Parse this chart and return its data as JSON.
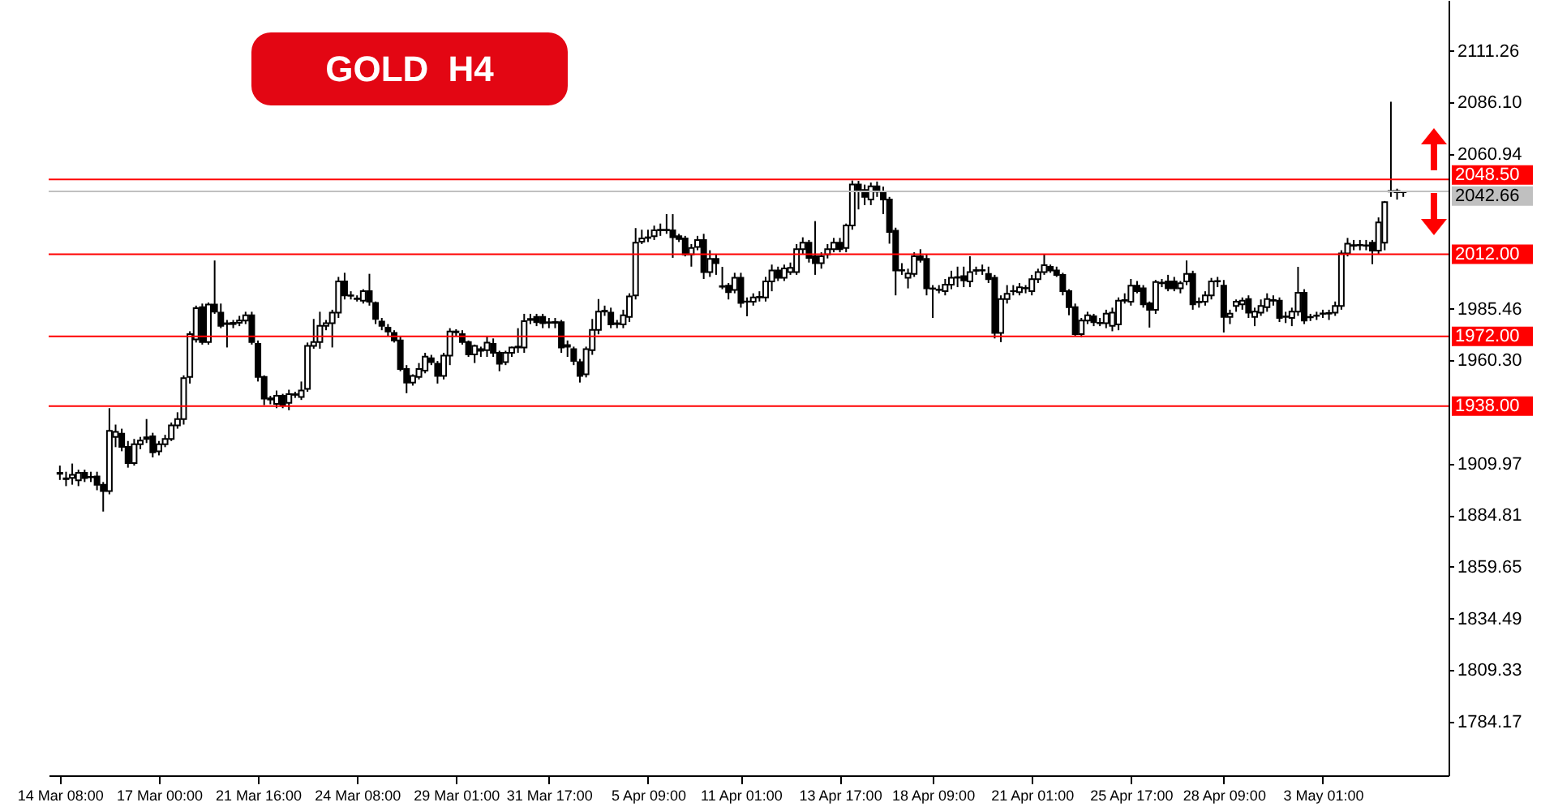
{
  "chart_data": {
    "type": "candlestick",
    "title": "GOLD H4",
    "categories": [
      "14 Mar 08:00",
      null,
      null,
      null,
      null,
      null,
      null,
      null,
      null,
      null,
      null,
      null,
      null,
      null,
      null,
      null,
      "17 Mar 00:00",
      null,
      null,
      null,
      null,
      null,
      null,
      null,
      null,
      null,
      null,
      null,
      null,
      null,
      null,
      null,
      "21 Mar 16:00",
      null,
      null,
      null,
      null,
      null,
      null,
      null,
      null,
      null,
      null,
      null,
      null,
      null,
      null,
      null,
      "24 Mar 08:00",
      null,
      null,
      null,
      null,
      null,
      null,
      null,
      null,
      null,
      null,
      null,
      null,
      null,
      null,
      null,
      "29 Mar 01:00",
      null,
      null,
      null,
      null,
      null,
      null,
      null,
      null,
      null,
      null,
      null,
      null,
      null,
      null,
      "31 Mar 17:00",
      null,
      null,
      null,
      null,
      null,
      null,
      null,
      null,
      null,
      null,
      null,
      null,
      null,
      null,
      null,
      "5 Apr 09:00",
      null,
      null,
      null,
      null,
      null,
      null,
      null,
      null,
      null,
      null,
      null,
      null,
      null,
      null,
      "11 Apr 01:00",
      null,
      null,
      null,
      null,
      null,
      null,
      null,
      null,
      null,
      null,
      null,
      null,
      null,
      null,
      null,
      "13 Apr 17:00",
      null,
      null,
      null,
      null,
      null,
      null,
      null,
      null,
      null,
      null,
      null,
      null,
      null,
      null,
      "18 Apr 09:00",
      null,
      null,
      null,
      null,
      null,
      null,
      null,
      null,
      null,
      null,
      null,
      null,
      null,
      null,
      null,
      "21 Apr 01:00",
      null,
      null,
      null,
      null,
      null,
      null,
      null,
      null,
      null,
      null,
      null,
      null,
      null,
      null,
      null,
      "25 Apr 17:00",
      null,
      null,
      null,
      null,
      null,
      null,
      null,
      null,
      null,
      null,
      null,
      null,
      null,
      null,
      "28 Apr 09:00",
      null,
      null,
      null,
      null,
      null,
      null,
      null,
      null,
      null,
      null,
      null,
      null,
      null,
      null,
      null,
      "3 May 01:00",
      null,
      null,
      null,
      null,
      null,
      null,
      null,
      null,
      null,
      null,
      null,
      null,
      null
    ],
    "ohlc": [
      [
        1905.5,
        1909,
        1902,
        1905.0
      ],
      [
        1902.8,
        1906,
        1899,
        1902.4
      ],
      [
        1903.0,
        1910,
        1899.7,
        1904.5
      ],
      [
        1901.8,
        1907,
        1899,
        1905.5
      ],
      [
        1905.5,
        1907,
        1901,
        1902.9
      ],
      [
        1903.5,
        1906,
        1901,
        1903.3
      ],
      [
        1903.7,
        1906,
        1897,
        1899.7
      ],
      [
        1899.7,
        1901,
        1886.6,
        1896.6
      ],
      [
        1896.6,
        1937.0,
        1895,
        1925.9
      ],
      [
        1923,
        1929,
        1918,
        1925.5
      ],
      [
        1924.6,
        1927,
        1916,
        1918.1
      ],
      [
        1918.1,
        1921,
        1908,
        1910.2
      ],
      [
        1910.2,
        1922,
        1909,
        1919.4
      ],
      [
        1919.4,
        1923,
        1917,
        1921.2
      ],
      [
        1922.0,
        1931.7,
        1920,
        1922.8
      ],
      [
        1923.3,
        1925,
        1913,
        1915.5
      ],
      [
        1916.0,
        1921,
        1914,
        1919.4
      ],
      [
        1919.4,
        1924,
        1918,
        1922.0
      ],
      [
        1922.0,
        1930,
        1921,
        1928.6
      ],
      [
        1928.6,
        1935,
        1927,
        1931.7
      ],
      [
        1931.7,
        1953,
        1929,
        1951.6
      ],
      [
        1952.2,
        1974.5,
        1949,
        1973.1
      ],
      [
        1970.5,
        1987,
        1969,
        1985.7
      ],
      [
        1986.2,
        1988,
        1968,
        1969.2
      ],
      [
        1969.2,
        1988.5,
        1968,
        1987.5
      ],
      [
        1987.5,
        2009.0,
        1983,
        1984.1
      ],
      [
        1983.6,
        1988,
        1976,
        1977.1
      ],
      [
        1978.4,
        1980,
        1966.6,
        1978.0
      ],
      [
        1978.0,
        1980,
        1976,
        1978.6
      ],
      [
        1978.6,
        1982,
        1977,
        1979.7
      ],
      [
        1979.7,
        1984,
        1978,
        1982.3
      ],
      [
        1982.3,
        1984,
        1968,
        1969.2
      ],
      [
        1968.4,
        1970,
        1950,
        1952.2
      ],
      [
        1952.2,
        1953,
        1938.5,
        1941.7
      ],
      [
        1941.8,
        1943,
        1938.9,
        1941.2
      ],
      [
        1939.1,
        1945.6,
        1937,
        1943.0
      ],
      [
        1943.0,
        1944,
        1937,
        1938.5
      ],
      [
        1939.6,
        1946,
        1936,
        1943.8
      ],
      [
        1943.5,
        1945,
        1942,
        1943.8
      ],
      [
        1942.5,
        1950,
        1941,
        1945.6
      ],
      [
        1946.4,
        1969,
        1945,
        1967.4
      ],
      [
        1967.4,
        1980.5,
        1966,
        1969.2
      ],
      [
        1969.2,
        1984,
        1966,
        1977.1
      ],
      [
        1977.1,
        1980,
        1975,
        1978.4
      ],
      [
        1978.4,
        1985,
        1966.6,
        1983.6
      ],
      [
        1983.6,
        2001,
        1981,
        1998.8
      ],
      [
        1998.8,
        2003,
        1990,
        1992.0
      ],
      [
        1992.0,
        1994,
        1990,
        1991.8
      ],
      [
        1990.5,
        1992,
        1989,
        1990.2
      ],
      [
        1989.4,
        1995,
        1988,
        1994.1
      ],
      [
        1994.1,
        2002.5,
        1987,
        1988.9
      ],
      [
        1988.3,
        1989,
        1978,
        1980.5
      ],
      [
        1979.2,
        1981,
        1975,
        1977.1
      ],
      [
        1976.3,
        1978,
        1972,
        1974.4
      ],
      [
        1973.7,
        1975,
        1969,
        1970.0
      ],
      [
        1970.0,
        1972,
        1955,
        1956.1
      ],
      [
        1956.1,
        1958,
        1944.3,
        1949.5
      ],
      [
        1949.5,
        1953.5,
        1948,
        1952.7
      ],
      [
        1952.2,
        1959,
        1951,
        1956.1
      ],
      [
        1955.3,
        1964,
        1954,
        1962.1
      ],
      [
        1961.3,
        1963,
        1958,
        1959.5
      ],
      [
        1958.7,
        1960,
        1949,
        1952.7
      ],
      [
        1952.7,
        1964,
        1951,
        1962.6
      ],
      [
        1962.6,
        1976,
        1958,
        1974.4
      ],
      [
        1974.4,
        1975.5,
        1972,
        1974.0
      ],
      [
        1973.1,
        1975,
        1968,
        1969.2
      ],
      [
        1969.2,
        1970,
        1962,
        1963.2
      ],
      [
        1963.2,
        1968,
        1959,
        1967.4
      ],
      [
        1965.0,
        1967,
        1962,
        1965.8
      ],
      [
        1965.3,
        1972,
        1962,
        1968.9
      ],
      [
        1968.4,
        1971,
        1962,
        1964.0
      ],
      [
        1964.0,
        1965,
        1955,
        1958.7
      ],
      [
        1959.5,
        1965,
        1958,
        1964.0
      ],
      [
        1964.0,
        1967,
        1962,
        1966.6
      ],
      [
        1966.6,
        1976,
        1964,
        1967.0
      ],
      [
        1966.6,
        1983,
        1964,
        1979.4
      ],
      [
        1980.0,
        1983,
        1978,
        1980.5
      ],
      [
        1981.5,
        1983,
        1977,
        1978.9
      ],
      [
        1981.5,
        1983,
        1976,
        1978.4
      ],
      [
        1978.9,
        1981,
        1976,
        1978.6
      ],
      [
        1978.6,
        1981,
        1976,
        1979.0
      ],
      [
        1978.9,
        1980,
        1964,
        1966.6
      ],
      [
        1967.0,
        1970,
        1962,
        1967.8
      ],
      [
        1965.8,
        1967,
        1958,
        1960.0
      ],
      [
        1959.5,
        1961,
        1949.5,
        1952.7
      ],
      [
        1953.5,
        1967,
        1952,
        1965.8
      ],
      [
        1965.3,
        1980.5,
        1963,
        1975.2
      ],
      [
        1975.2,
        1990.2,
        1973,
        1984.1
      ],
      [
        1984.1,
        1987,
        1982,
        1984.5
      ],
      [
        1983.6,
        1986,
        1976,
        1977.8
      ],
      [
        1978.0,
        1980,
        1976,
        1978.4
      ],
      [
        1977.8,
        1985,
        1976,
        1982.3
      ],
      [
        1981.5,
        1993,
        1979,
        1991.5
      ],
      [
        1992.0,
        2024.8,
        1990,
        2017.7
      ],
      [
        2018.2,
        2024,
        2017,
        2019.8
      ],
      [
        2020.0,
        2024,
        2018,
        2020.3
      ],
      [
        2020.8,
        2026,
        2019,
        2023.7
      ],
      [
        2023.7,
        2027,
        2021,
        2024.0
      ],
      [
        2023.7,
        2031.6,
        2022,
        2024.0
      ],
      [
        2023.7,
        2031.6,
        2010.3,
        2020.3
      ],
      [
        2020.8,
        2022,
        2018,
        2019.5
      ],
      [
        2019.8,
        2021,
        2011,
        2011.9
      ],
      [
        2011.9,
        2017,
        2006,
        2015.1
      ],
      [
        2015.6,
        2021,
        2014,
        2019.0
      ],
      [
        2019.0,
        2022,
        2000,
        2003.3
      ],
      [
        2003.3,
        2014,
        2001,
        2009.8
      ],
      [
        2009.8,
        2012,
        2002,
        2007.7
      ],
      [
        1996.5,
        2005.9,
        1995,
        1996.2
      ],
      [
        1996.7,
        1998,
        1990,
        1993.6
      ],
      [
        1994.6,
        2003,
        1993,
        2000.6
      ],
      [
        2000.6,
        2003,
        1986,
        1988.3
      ],
      [
        1989.0,
        1991,
        1981.8,
        1988.9
      ],
      [
        1988.9,
        1993,
        1987,
        1991.0
      ],
      [
        1991.0,
        1994,
        1989,
        1991.3
      ],
      [
        1991.0,
        2001,
        1989,
        1998.8
      ],
      [
        1998.8,
        2007,
        1994,
        2004.1
      ],
      [
        2004.1,
        2006,
        1999,
        2000.6
      ],
      [
        2000.6,
        2007,
        1999,
        2005.1
      ],
      [
        2003.3,
        2008,
        2002,
        2005.4
      ],
      [
        2003.3,
        2017,
        2002,
        2014.5
      ],
      [
        2014.5,
        2020.3,
        2012,
        2017.7
      ],
      [
        2017.7,
        2019,
        2008,
        2010.3
      ],
      [
        2011.1,
        2028.2,
        2002.0,
        2007.7
      ],
      [
        2007.7,
        2013,
        2005,
        2011.1
      ],
      [
        2011.9,
        2017,
        2010,
        2014.5
      ],
      [
        2014.5,
        2020,
        2013,
        2017.7
      ],
      [
        2017.7,
        2020,
        2013,
        2014.5
      ],
      [
        2015.1,
        2027,
        2013,
        2026.1
      ],
      [
        2026.1,
        2048,
        2024,
        2046.0
      ],
      [
        2046.0,
        2047.8,
        2033.9,
        2043.4
      ],
      [
        2043.4,
        2046,
        2036,
        2040.0
      ],
      [
        2038.7,
        2047,
        2036,
        2045.2
      ],
      [
        2045.2,
        2047.5,
        2040,
        2042.6
      ],
      [
        2042.6,
        2045,
        2031.6,
        2038.7
      ],
      [
        2038.7,
        2040,
        2017.2,
        2022.9
      ],
      [
        2023.5,
        2025,
        1992.0,
        2004.1
      ],
      [
        2004.1,
        2007.7,
        2002,
        2004.3
      ],
      [
        2000.6,
        2005,
        1995.4,
        2002.7
      ],
      [
        2002.5,
        2013,
        2001,
        2011.1
      ],
      [
        2011.1,
        2014.5,
        2008,
        2009.3
      ],
      [
        2009.8,
        2012,
        1992,
        1995.4
      ],
      [
        1995.4,
        1997,
        1981.0,
        1995.2
      ],
      [
        1994.8,
        1997,
        1993,
        1994.6
      ],
      [
        1994.1,
        2000,
        1992,
        1997.2
      ],
      [
        1997.2,
        2004,
        1995,
        2000.6
      ],
      [
        2000.6,
        2006,
        1996,
        2000.9
      ],
      [
        2001.4,
        2006,
        1996,
        1999.3
      ],
      [
        1998.8,
        2011.1,
        1996,
        2003.3
      ],
      [
        2004.0,
        2006,
        2002,
        2004.3
      ],
      [
        2004.3,
        2007,
        2002,
        2004.1
      ],
      [
        2002.5,
        2006,
        1998,
        1999.9
      ],
      [
        2000.6,
        2002,
        1971,
        1973.7
      ],
      [
        1973.7,
        1992,
        1969.2,
        1990.2
      ],
      [
        1990.2,
        1997,
        1988,
        1992.8
      ],
      [
        1994.0,
        1997,
        1992,
        1994.1
      ],
      [
        1993.6,
        1998,
        1992,
        1995.9
      ],
      [
        1995.4,
        1997,
        1993,
        1995.6
      ],
      [
        1994.1,
        2002,
        1992,
        1999.9
      ],
      [
        1999.9,
        2005,
        1998,
        2003.3
      ],
      [
        2003.3,
        2011.9,
        2002,
        2006.7
      ],
      [
        2005.9,
        2007,
        2003,
        2004.1
      ],
      [
        2004.1,
        2006,
        2001,
        2002.0
      ],
      [
        2002.0,
        2003,
        1992,
        1994.1
      ],
      [
        1994.1,
        1995,
        1982.3,
        1986.2
      ],
      [
        1986.2,
        1988,
        1972,
        1973.1
      ],
      [
        1973.1,
        1981,
        1971.5,
        1979.7
      ],
      [
        1979.7,
        1984,
        1978,
        1982.3
      ],
      [
        1981.8,
        1983,
        1977,
        1978.9
      ],
      [
        1978.6,
        1981,
        1977,
        1978.4
      ],
      [
        1978.4,
        1985,
        1976,
        1983.1
      ],
      [
        1977.1,
        1986,
        1974.5,
        1983.6
      ],
      [
        1977.8,
        1991,
        1975,
        1989.4
      ],
      [
        1989.4,
        1993,
        1988,
        1989.7
      ],
      [
        1988.9,
        2000,
        1987,
        1996.7
      ],
      [
        1996.7,
        1999,
        1993,
        1994.1
      ],
      [
        1995.4,
        1997,
        1986,
        1987.6
      ],
      [
        1988.1,
        1989,
        1976.3,
        1985.0
      ],
      [
        1985.0,
        1999.5,
        1983,
        1998.5
      ],
      [
        1997.9,
        2000,
        1996,
        1998.2
      ],
      [
        1998.8,
        2002,
        1994,
        1995.4
      ],
      [
        1998.8,
        2001,
        1994,
        1995.4
      ],
      [
        1995.4,
        1999,
        1993,
        1997.9
      ],
      [
        1998.8,
        2009.0,
        1997,
        2002.5
      ],
      [
        2002.5,
        2004,
        1985,
        1987.6
      ],
      [
        1988.9,
        1991,
        1986,
        1988.6
      ],
      [
        1988.9,
        1994,
        1987,
        1992.0
      ],
      [
        1992.0,
        2000.5,
        1990,
        1998.8
      ],
      [
        1998.8,
        2001,
        1996,
        1999.0
      ],
      [
        1996.7,
        1999.5,
        1973.9,
        1981.5
      ],
      [
        1981.5,
        1985,
        1978,
        1983.1
      ],
      [
        1986.8,
        1990,
        1984,
        1988.9
      ],
      [
        1987.6,
        1991,
        1985,
        1989.4
      ],
      [
        1990.2,
        1992,
        1981,
        1983.6
      ],
      [
        1981.5,
        1986,
        1977,
        1984.1
      ],
      [
        1983.6,
        1990,
        1982,
        1986.8
      ],
      [
        1986.2,
        1993,
        1984,
        1990.2
      ],
      [
        1989.4,
        1992,
        1987,
        1989.7
      ],
      [
        1989.4,
        1991,
        1979,
        1981.0
      ],
      [
        1981.5,
        1984,
        1978.5,
        1981.7
      ],
      [
        1981.0,
        1986,
        1977,
        1984.1
      ],
      [
        1984.1,
        2005.9,
        1982,
        1993.3
      ],
      [
        1993.3,
        1995,
        1978,
        1979.7
      ],
      [
        1981.3,
        1983,
        1979.5,
        1981.5
      ],
      [
        1982.0,
        1984,
        1980,
        1982.2
      ],
      [
        1983.0,
        1985,
        1981,
        1983.2
      ],
      [
        1983.1,
        1985,
        1980,
        1983.4
      ],
      [
        1983.6,
        1989,
        1982,
        1986.8
      ],
      [
        1986.8,
        2014,
        1985,
        2012.4
      ],
      [
        2012.4,
        2020,
        2011,
        2017.2
      ],
      [
        2016.2,
        2019,
        2014,
        2016.5
      ],
      [
        2016.4,
        2019,
        2014,
        2016.6
      ],
      [
        2016.4,
        2019,
        2014,
        2016.2
      ],
      [
        2017.7,
        2019,
        2007.2,
        2013.8
      ],
      [
        2013.8,
        2030,
        2012,
        2027.6
      ],
      [
        2017.7,
        2038,
        2014,
        2037.4
      ],
      [
        2042.6,
        2086.4,
        2040,
        2042.9
      ],
      [
        2042.9,
        2044,
        2038.7,
        2042.3
      ],
      [
        2042.3,
        2043,
        2040,
        2042.66
      ]
    ],
    "ylim": [
      1758,
      2136
    ],
    "yticks": [
      {
        "value": 2111.26,
        "label": "2111.26"
      },
      {
        "value": 2086.1,
        "label": "2086.10"
      },
      {
        "value": 2060.94,
        "label": "2060.94"
      },
      {
        "value": 1985.46,
        "label": "1985.46"
      },
      {
        "value": 1960.3,
        "label": "1960.30"
      },
      {
        "value": 1909.97,
        "label": "1909.97"
      },
      {
        "value": 1884.81,
        "label": "1884.81"
      },
      {
        "value": 1859.65,
        "label": "1859.65"
      },
      {
        "value": 1834.49,
        "label": "1834.49"
      },
      {
        "value": 1809.33,
        "label": "1809.33"
      },
      {
        "value": 1784.17,
        "label": "1784.17"
      }
    ],
    "ref_lines": [
      {
        "axis": "y",
        "value": 2048.5,
        "label": "2048.50",
        "color": "#ff0000"
      },
      {
        "axis": "y",
        "value": 2042.66,
        "label": "2042.66",
        "color": "#c0c0c0"
      },
      {
        "axis": "y",
        "value": 2012,
        "label": "2012.00",
        "color": "#ff0000"
      },
      {
        "axis": "y",
        "value": 1972,
        "label": "1972.00",
        "color": "#ff0000"
      },
      {
        "axis": "y",
        "value": 1938,
        "label": "1938.00",
        "color": "#ff0000"
      }
    ],
    "grid": false
  }
}
